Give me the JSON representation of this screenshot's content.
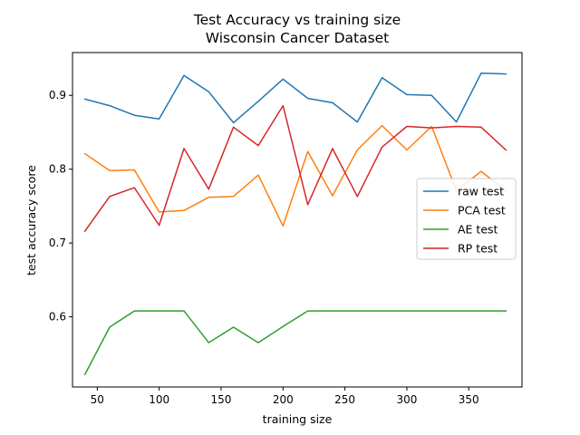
{
  "chart_data": {
    "type": "line",
    "title": "Test Accuracy vs training size",
    "subtitle": "Wisconsin Cancer Dataset",
    "xlabel": "training size",
    "ylabel": "test accuracy score",
    "x": [
      40,
      60,
      80,
      100,
      120,
      140,
      160,
      180,
      200,
      220,
      240,
      260,
      280,
      300,
      320,
      340,
      360,
      380
    ],
    "xlim": [
      30,
      393
    ],
    "ylim": [
      0.505,
      0.958
    ],
    "xticks": [
      {
        "value": 50,
        "label": "50"
      },
      {
        "value": 100,
        "label": "100"
      },
      {
        "value": 150,
        "label": "150"
      },
      {
        "value": 200,
        "label": "200"
      },
      {
        "value": 250,
        "label": "250"
      },
      {
        "value": 300,
        "label": "300"
      },
      {
        "value": 350,
        "label": "350"
      }
    ],
    "yticks": [
      {
        "value": 0.6,
        "label": "0.6"
      },
      {
        "value": 0.7,
        "label": "0.7"
      },
      {
        "value": 0.8,
        "label": "0.8"
      },
      {
        "value": 0.9,
        "label": "0.9"
      }
    ],
    "grid": false,
    "legend_position": "center-right",
    "series": [
      {
        "name": "raw test",
        "color": "#1f77b4",
        "values": [
          0.895,
          0.886,
          0.873,
          0.868,
          0.927,
          0.905,
          0.863,
          0.892,
          0.922,
          0.896,
          0.89,
          0.864,
          0.924,
          0.901,
          0.9,
          0.864,
          0.93,
          0.929
        ]
      },
      {
        "name": "PCA test",
        "color": "#ff7f0e",
        "values": [
          0.821,
          0.798,
          0.799,
          0.742,
          0.744,
          0.762,
          0.763,
          0.792,
          0.723,
          0.824,
          0.764,
          0.826,
          0.859,
          0.826,
          0.858,
          0.771,
          0.797,
          0.771
        ]
      },
      {
        "name": "AE test",
        "color": "#2ca02c",
        "values": [
          0.522,
          0.586,
          0.608,
          0.608,
          0.608,
          0.565,
          0.586,
          0.565,
          0.587,
          0.608,
          0.608,
          0.608,
          0.608,
          0.608,
          0.608,
          0.608,
          0.608,
          0.608
        ]
      },
      {
        "name": "RP test",
        "color": "#d62728",
        "values": [
          0.716,
          0.763,
          0.775,
          0.724,
          0.828,
          0.773,
          0.857,
          0.832,
          0.886,
          0.752,
          0.828,
          0.763,
          0.83,
          0.858,
          0.856,
          0.858,
          0.857,
          0.826
        ]
      }
    ]
  }
}
